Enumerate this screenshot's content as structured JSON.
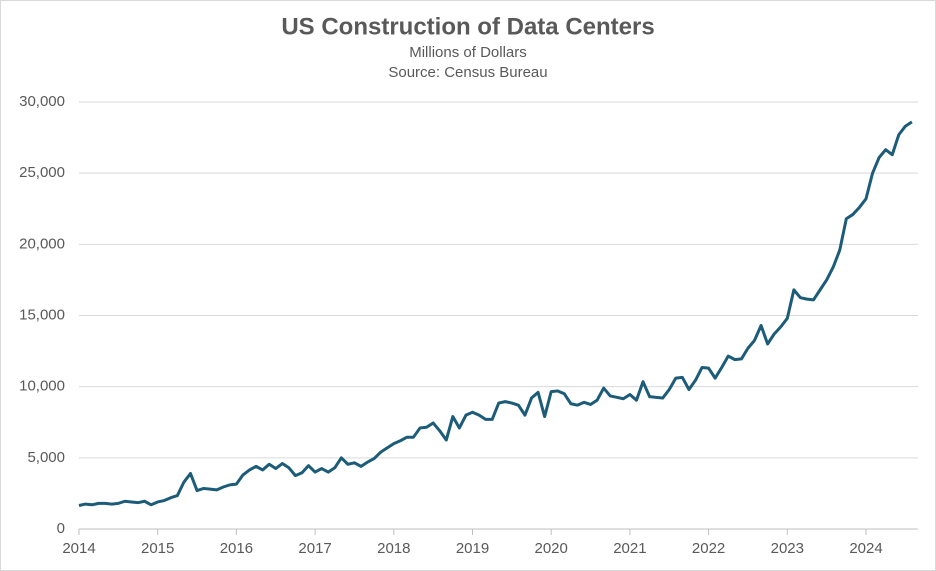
{
  "chart_data": {
    "type": "line",
    "title": "US Construction of Data Centers",
    "subtitle": [
      "Millions of Dollars",
      "Source: Census Bureau"
    ],
    "categories": [
      "2014",
      null,
      null,
      null,
      null,
      null,
      null,
      null,
      null,
      null,
      null,
      null,
      "2015",
      null,
      null,
      null,
      null,
      null,
      null,
      null,
      null,
      null,
      null,
      null,
      "2016",
      null,
      null,
      null,
      null,
      null,
      null,
      null,
      null,
      null,
      null,
      null,
      "2017",
      null,
      null,
      null,
      null,
      null,
      null,
      null,
      null,
      null,
      null,
      null,
      "2018",
      null,
      null,
      null,
      null,
      null,
      null,
      null,
      null,
      null,
      null,
      null,
      "2019",
      null,
      null,
      null,
      null,
      null,
      null,
      null,
      null,
      null,
      null,
      null,
      "2020",
      null,
      null,
      null,
      null,
      null,
      null,
      null,
      null,
      null,
      null,
      null,
      "2021",
      null,
      null,
      null,
      null,
      null,
      null,
      null,
      null,
      null,
      null,
      null,
      "2022",
      null,
      null,
      null,
      null,
      null,
      null,
      null,
      null,
      null,
      null,
      null,
      "2023",
      null,
      null,
      null,
      null,
      null,
      null,
      null,
      null,
      null,
      null,
      null,
      "2024",
      null,
      null,
      null,
      null,
      null,
      null,
      null
    ],
    "values": [
      1650,
      1750,
      1700,
      1800,
      1800,
      1750,
      1800,
      1950,
      1900,
      1850,
      1950,
      1700,
      1900,
      2000,
      2200,
      2350,
      3300,
      3900,
      2700,
      2850,
      2800,
      2750,
      2950,
      3100,
      3150,
      3800,
      4150,
      4400,
      4150,
      4550,
      4250,
      4600,
      4300,
      3750,
      3950,
      4450,
      4000,
      4250,
      4000,
      4300,
      5000,
      4550,
      4650,
      4400,
      4700,
      4950,
      5400,
      5700,
      6000,
      6200,
      6450,
      6450,
      7100,
      7150,
      7450,
      6900,
      6250,
      7900,
      7100,
      8000,
      8200,
      8000,
      7700,
      7700,
      8850,
      8950,
      8850,
      8700,
      8000,
      9200,
      9600,
      7900,
      9650,
      9700,
      9500,
      8800,
      8700,
      8900,
      8750,
      9050,
      9900,
      9350,
      9250,
      9150,
      9450,
      9050,
      10350,
      9300,
      9250,
      9200,
      9800,
      10600,
      10650,
      9800,
      10450,
      11350,
      11300,
      10600,
      11350,
      12150,
      11900,
      11950,
      12700,
      13250,
      14300,
      13000,
      13700,
      14200,
      14800,
      16800,
      16250,
      16150,
      16100,
      16800,
      17500,
      18400,
      19600,
      21800,
      22100,
      22600,
      23200,
      25000,
      26100,
      26650,
      26300,
      27700,
      28300,
      28600
    ],
    "color": "#1d5c78",
    "ylim": [
      0,
      30000
    ],
    "yticks": [
      0,
      {
        "value": 5000,
        "label": "5,000"
      },
      {
        "value": 10000,
        "label": "10,000"
      },
      {
        "value": 15000,
        "label": "15,000"
      },
      {
        "value": 20000,
        "label": "20,000"
      },
      {
        "value": 25000,
        "label": "25,000"
      },
      {
        "value": 30000,
        "label": "30,000"
      }
    ],
    "grid": true
  }
}
